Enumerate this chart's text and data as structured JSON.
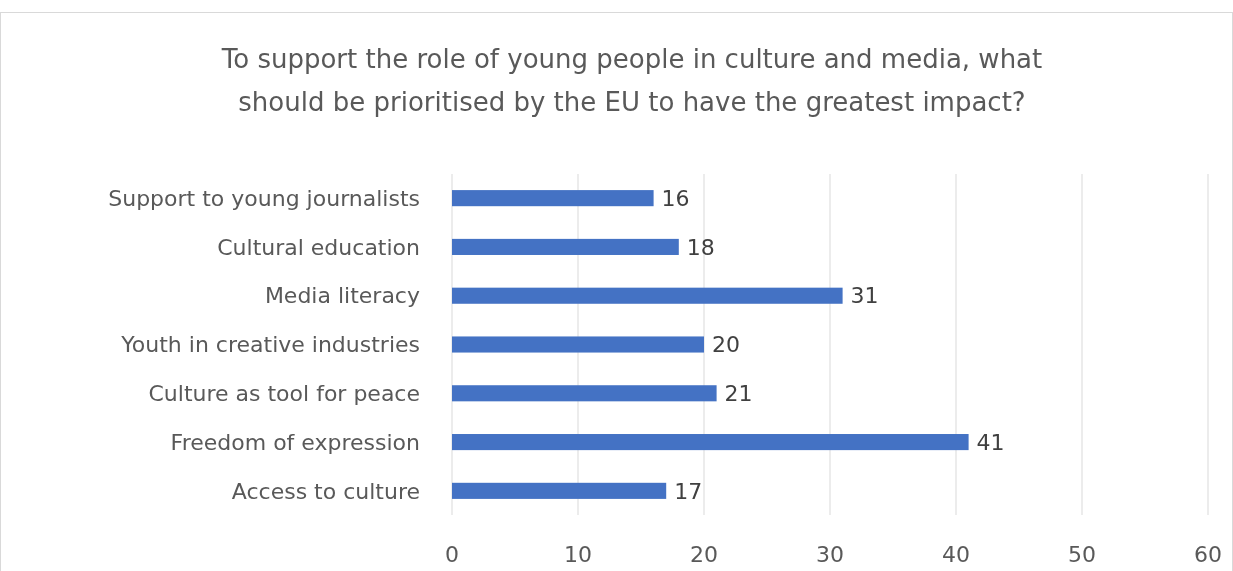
{
  "chart_data": {
    "type": "bar",
    "orientation": "horizontal",
    "title": "To support the role of young people in culture and media, what should be prioritised by the EU to have the greatest impact?",
    "categories": [
      "Support to young journalists",
      "Cultural education",
      "Media literacy",
      "Youth in creative industries",
      "Culture as tool for peace",
      "Freedom of expression",
      "Access to culture"
    ],
    "values": [
      16,
      18,
      31,
      20,
      21,
      41,
      17
    ],
    "color": "#4472c4",
    "xlim": [
      0,
      60
    ],
    "xticks": [
      0,
      10,
      20,
      30,
      40,
      50,
      60
    ],
    "grid": "x",
    "data_labels": true
  }
}
